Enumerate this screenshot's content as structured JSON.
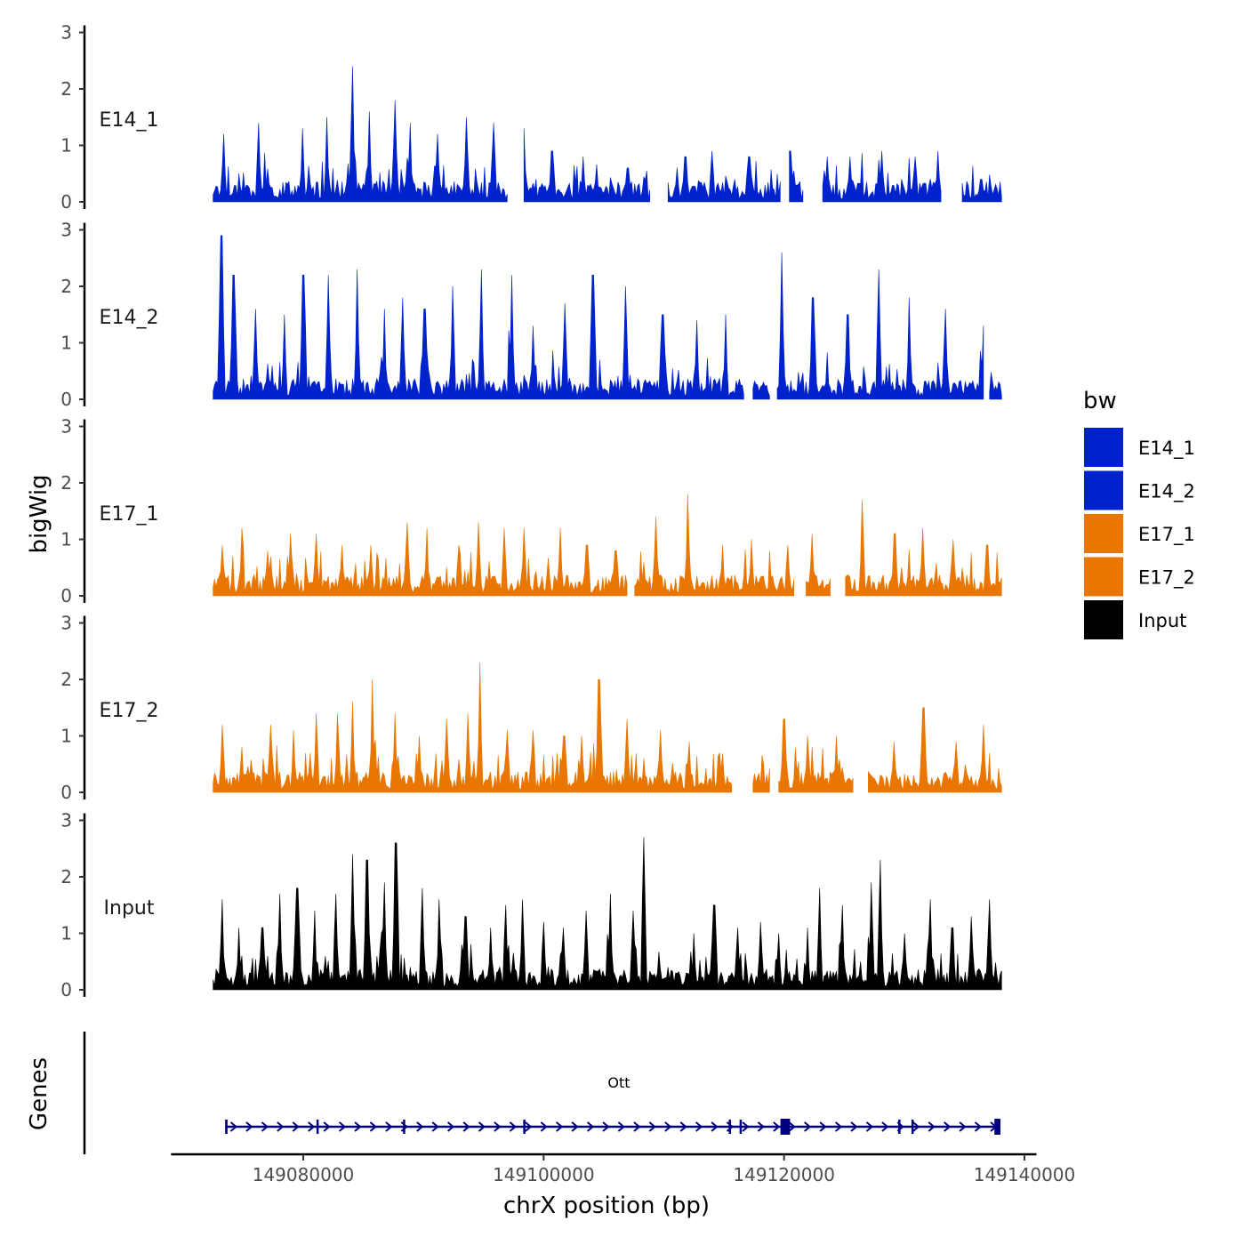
{
  "chart_data": {
    "type": "area",
    "y_axis_title": "bigWig",
    "y_ticks": [
      "0",
      "1",
      "2",
      "3"
    ],
    "ylim": [
      0,
      3
    ],
    "x_axis_title": "chrX position (bp)",
    "x_ticks": [
      "149080000",
      "149100000",
      "149120000",
      "149140000"
    ],
    "xlim": [
      149069000,
      149141000
    ],
    "signal_range": [
      149072500,
      149138100
    ],
    "tracks": [
      {
        "name": "E14_1",
        "color": "#0022CC",
        "peaks": [
          [
            149073400,
            1.2
          ],
          [
            149076300,
            1.4
          ],
          [
            149079900,
            1.3
          ],
          [
            149082000,
            1.5
          ],
          [
            149084100,
            2.4
          ],
          [
            149085500,
            1.6
          ],
          [
            149087600,
            1.8
          ],
          [
            149088900,
            1.4
          ],
          [
            149091200,
            1.2
          ],
          [
            149093600,
            1.5
          ],
          [
            149095800,
            1.4
          ],
          [
            149098400,
            1.3
          ],
          [
            149100700,
            0.9
          ],
          [
            149103300,
            0.8
          ],
          [
            149107000,
            0.6
          ],
          [
            149111800,
            0.8
          ],
          [
            149114000,
            0.9
          ],
          [
            149117100,
            0.8
          ],
          [
            149120500,
            0.9
          ],
          [
            149123600,
            0.8
          ],
          [
            149125500,
            0.8
          ],
          [
            149128100,
            0.9
          ],
          [
            149130900,
            0.8
          ],
          [
            149132800,
            0.9
          ],
          [
            149136400,
            0.4
          ]
        ],
        "gaps": [
          [
            149097000,
            149098300
          ],
          [
            149108900,
            149110300
          ],
          [
            149119700,
            149120400
          ],
          [
            149121600,
            149123100
          ],
          [
            149133100,
            149134700
          ]
        ]
      },
      {
        "name": "E14_2",
        "color": "#0022CC",
        "peaks": [
          [
            149073200,
            2.9
          ],
          [
            149074200,
            2.2
          ],
          [
            149076000,
            1.6
          ],
          [
            149078400,
            1.5
          ],
          [
            149080000,
            2.2
          ],
          [
            149082100,
            2.2
          ],
          [
            149084500,
            2.3
          ],
          [
            149086700,
            1.6
          ],
          [
            149088300,
            1.8
          ],
          [
            149090100,
            1.6
          ],
          [
            149092400,
            2.0
          ],
          [
            149094800,
            2.3
          ],
          [
            149097300,
            2.2
          ],
          [
            149099100,
            1.3
          ],
          [
            149101800,
            1.7
          ],
          [
            149104100,
            2.2
          ],
          [
            149106800,
            2.0
          ],
          [
            149109900,
            1.5
          ],
          [
            149112700,
            1.4
          ],
          [
            149115100,
            1.5
          ],
          [
            149117200,
            0.8
          ],
          [
            149119800,
            2.6
          ],
          [
            149122400,
            1.8
          ],
          [
            149125300,
            1.5
          ],
          [
            149127900,
            2.3
          ],
          [
            149130400,
            1.8
          ],
          [
            149133400,
            1.6
          ],
          [
            149136600,
            1.3
          ]
        ],
        "gaps": [
          [
            149116700,
            149117400
          ],
          [
            149118800,
            149119400
          ],
          [
            149136600,
            149137000
          ]
        ]
      },
      {
        "name": "E17_1",
        "color": "#E87600",
        "peaks": [
          [
            149073300,
            0.9
          ],
          [
            149074900,
            1.2
          ],
          [
            149077000,
            0.8
          ],
          [
            149078900,
            1.1
          ],
          [
            149081100,
            1.1
          ],
          [
            149083200,
            0.9
          ],
          [
            149085600,
            0.9
          ],
          [
            149088600,
            1.3
          ],
          [
            149090300,
            1.2
          ],
          [
            149092900,
            0.9
          ],
          [
            149094600,
            1.3
          ],
          [
            149096700,
            1.2
          ],
          [
            149098400,
            1.2
          ],
          [
            149101400,
            1.2
          ],
          [
            149103600,
            0.9
          ],
          [
            149106000,
            0.8
          ],
          [
            149109300,
            1.4
          ],
          [
            149112000,
            1.8
          ],
          [
            149114900,
            0.9
          ],
          [
            149117300,
            1.0
          ],
          [
            149120300,
            0.9
          ],
          [
            149122300,
            1.1
          ],
          [
            149124300,
            0.6
          ],
          [
            149126500,
            1.7
          ],
          [
            149129200,
            1.1
          ],
          [
            149131500,
            1.2
          ],
          [
            149134100,
            1.0
          ],
          [
            149136900,
            0.9
          ]
        ],
        "gaps": [
          [
            149107000,
            149107500
          ],
          [
            149120900,
            149121800
          ],
          [
            149123900,
            149125000
          ]
        ]
      },
      {
        "name": "E17_2",
        "color": "#E87600",
        "peaks": [
          [
            149073300,
            1.2
          ],
          [
            149074900,
            0.8
          ],
          [
            149077300,
            1.2
          ],
          [
            149079200,
            1.1
          ],
          [
            149081100,
            1.4
          ],
          [
            149082800,
            1.4
          ],
          [
            149084100,
            1.6
          ],
          [
            149085800,
            2.0
          ],
          [
            149087600,
            1.4
          ],
          [
            149089700,
            1.0
          ],
          [
            149091900,
            1.3
          ],
          [
            149093700,
            1.4
          ],
          [
            149094700,
            2.3
          ],
          [
            149097000,
            1.1
          ],
          [
            149099100,
            1.1
          ],
          [
            149101700,
            1.0
          ],
          [
            149103100,
            1.0
          ],
          [
            149104600,
            2.0
          ],
          [
            149106900,
            1.3
          ],
          [
            149109700,
            1.1
          ],
          [
            149112100,
            0.9
          ],
          [
            149114600,
            0.7
          ],
          [
            149116800,
            0.8
          ],
          [
            149120000,
            1.3
          ],
          [
            149122000,
            1.0
          ],
          [
            149124400,
            1.0
          ],
          [
            149126900,
            0.8
          ],
          [
            149129100,
            0.9
          ],
          [
            149131600,
            1.5
          ],
          [
            149134300,
            0.9
          ],
          [
            149136600,
            1.2
          ]
        ],
        "gaps": [
          [
            149115700,
            149117300
          ],
          [
            149118900,
            149119500
          ],
          [
            149125800,
            149126900
          ]
        ]
      },
      {
        "name": "Input",
        "color": "#000000",
        "peaks": [
          [
            149073300,
            1.6
          ],
          [
            149074700,
            1.1
          ],
          [
            149076600,
            1.1
          ],
          [
            149078000,
            1.7
          ],
          [
            149079500,
            1.8
          ],
          [
            149081000,
            1.4
          ],
          [
            149082700,
            1.7
          ],
          [
            149084100,
            2.4
          ],
          [
            149085300,
            2.3
          ],
          [
            149086700,
            1.9
          ],
          [
            149087700,
            2.6
          ],
          [
            149089900,
            1.8
          ],
          [
            149091300,
            1.6
          ],
          [
            149093500,
            1.3
          ],
          [
            149095600,
            1.1
          ],
          [
            149096900,
            1.5
          ],
          [
            149098200,
            1.6
          ],
          [
            149100000,
            1.2
          ],
          [
            149101600,
            1.1
          ],
          [
            149103500,
            1.4
          ],
          [
            149105500,
            1.7
          ],
          [
            149107500,
            1.4
          ],
          [
            149108300,
            2.7
          ],
          [
            149110400,
            0.4
          ],
          [
            149112500,
            1.0
          ],
          [
            149114200,
            1.5
          ],
          [
            149116200,
            1.1
          ],
          [
            149118000,
            1.2
          ],
          [
            149119500,
            1.0
          ],
          [
            149121900,
            1.1
          ],
          [
            149123000,
            1.8
          ],
          [
            149124800,
            1.5
          ],
          [
            149127200,
            1.9
          ],
          [
            149128000,
            2.3
          ],
          [
            149130000,
            1.0
          ],
          [
            149132200,
            1.6
          ],
          [
            149134000,
            1.1
          ],
          [
            149135600,
            1.3
          ],
          [
            149137100,
            1.6
          ]
        ],
        "gaps": []
      }
    ],
    "legend": {
      "title": "bw",
      "position": "right",
      "items": [
        {
          "label": "E14_1",
          "color": "#0022CC"
        },
        {
          "label": "E14_2",
          "color": "#0022CC"
        },
        {
          "label": "E17_1",
          "color": "#E87600"
        },
        {
          "label": "E17_2",
          "color": "#E87600"
        },
        {
          "label": "Input",
          "color": "#000000"
        }
      ]
    },
    "genes_track": {
      "title": "Genes",
      "gene_name": "Ott",
      "gene_start": 149073600,
      "gene_end": 149138000,
      "strand": "+",
      "color": "#000080",
      "exons": [
        [
          149073500,
          149073700
        ],
        [
          149081100,
          149081200
        ],
        [
          149088300,
          149088400
        ],
        [
          149098300,
          149098400
        ],
        [
          149115400,
          149115500
        ],
        [
          149116300,
          149116400
        ],
        [
          149119700,
          149120500
        ],
        [
          149129500,
          149129600
        ],
        [
          149130600,
          149130700
        ],
        [
          149137500,
          149138000
        ]
      ]
    }
  }
}
